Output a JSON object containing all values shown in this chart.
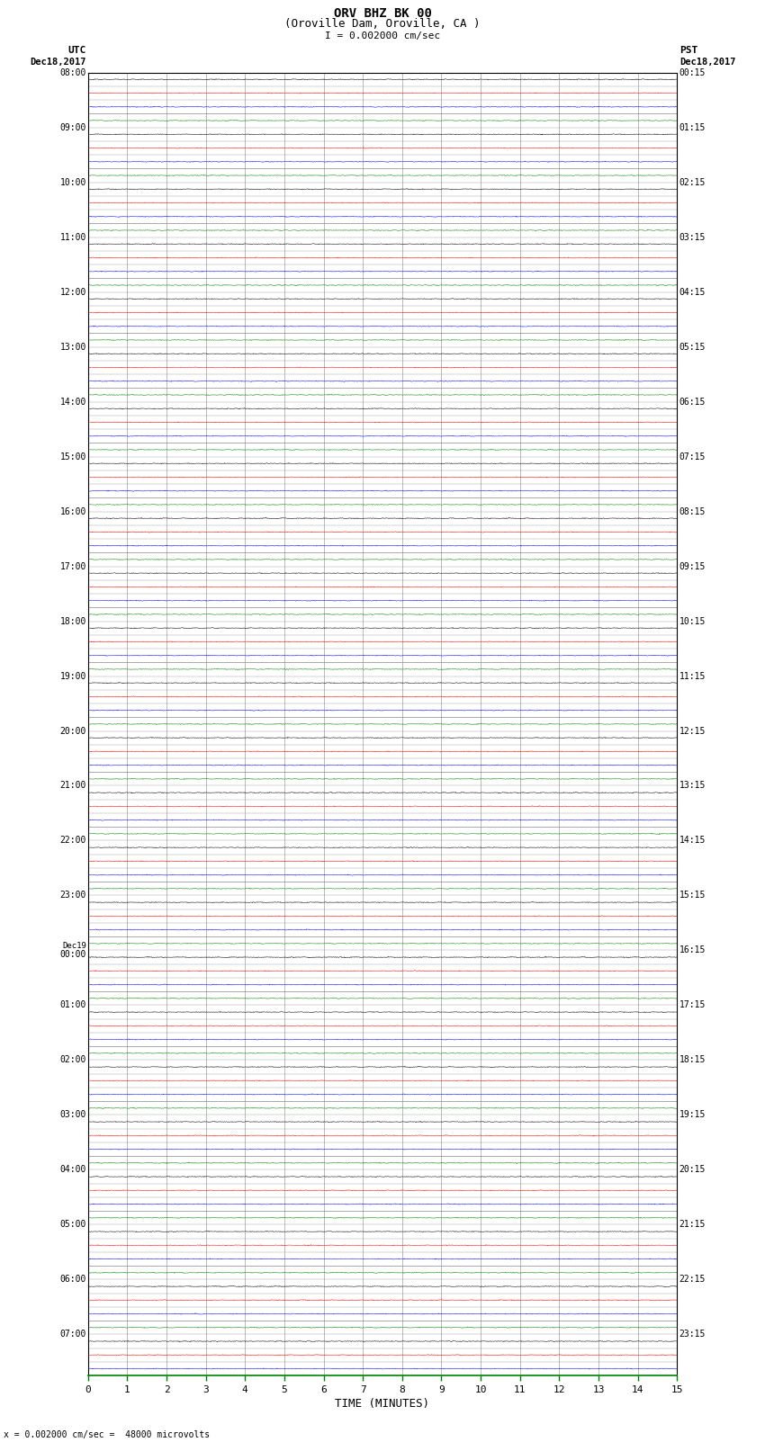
{
  "title_line1": "ORV BHZ BK 00",
  "title_line2": "(Oroville Dam, Oroville, CA )",
  "scale_label": "I = 0.002000 cm/sec",
  "bottom_note": "= 0.002000 cm/sec =  48000 microvolts",
  "left_header": "UTC",
  "left_date": "Dec18,2017",
  "right_header": "PST",
  "right_date": "Dec18,2017",
  "xlabel": "TIME (MINUTES)",
  "xmin": 0,
  "xmax": 15,
  "xticks": [
    0,
    1,
    2,
    3,
    4,
    5,
    6,
    7,
    8,
    9,
    10,
    11,
    12,
    13,
    14,
    15
  ],
  "left_times": [
    "08:00",
    "",
    "",
    "",
    "09:00",
    "",
    "",
    "",
    "10:00",
    "",
    "",
    "",
    "11:00",
    "",
    "",
    "",
    "12:00",
    "",
    "",
    "",
    "13:00",
    "",
    "",
    "",
    "14:00",
    "",
    "",
    "",
    "15:00",
    "",
    "",
    "",
    "16:00",
    "",
    "",
    "",
    "17:00",
    "",
    "",
    "",
    "18:00",
    "",
    "",
    "",
    "19:00",
    "",
    "",
    "",
    "20:00",
    "",
    "",
    "",
    "21:00",
    "",
    "",
    "",
    "22:00",
    "",
    "",
    "",
    "23:00",
    "",
    "",
    "",
    "Dec19\n00:00",
    "",
    "",
    "",
    "01:00",
    "",
    "",
    "",
    "02:00",
    "",
    "",
    "",
    "03:00",
    "",
    "",
    "",
    "04:00",
    "",
    "",
    "",
    "05:00",
    "",
    "",
    "",
    "06:00",
    "",
    "",
    "",
    "07:00",
    "",
    ""
  ],
  "right_times": [
    "00:15",
    "",
    "",
    "",
    "01:15",
    "",
    "",
    "",
    "02:15",
    "",
    "",
    "",
    "03:15",
    "",
    "",
    "",
    "04:15",
    "",
    "",
    "",
    "05:15",
    "",
    "",
    "",
    "06:15",
    "",
    "",
    "",
    "07:15",
    "",
    "",
    "",
    "08:15",
    "",
    "",
    "",
    "09:15",
    "",
    "",
    "",
    "10:15",
    "",
    "",
    "",
    "11:15",
    "",
    "",
    "",
    "12:15",
    "",
    "",
    "",
    "13:15",
    "",
    "",
    "",
    "14:15",
    "",
    "",
    "",
    "15:15",
    "",
    "",
    "",
    "16:15",
    "",
    "",
    "",
    "17:15",
    "",
    "",
    "",
    "18:15",
    "",
    "",
    "",
    "19:15",
    "",
    "",
    "",
    "20:15",
    "",
    "",
    "",
    "21:15",
    "",
    "",
    "",
    "22:15",
    "",
    "",
    "",
    "23:15",
    "",
    ""
  ],
  "trace_colors": [
    "black",
    "red",
    "blue",
    "green"
  ],
  "n_rows": 95,
  "fig_width": 8.5,
  "fig_height": 16.13,
  "bg_color": "white",
  "grid_color": "#888888",
  "axis_color": "black",
  "xaxis_color": "green",
  "trace_amplitude": 0.03,
  "trace_linewidth": 0.35
}
